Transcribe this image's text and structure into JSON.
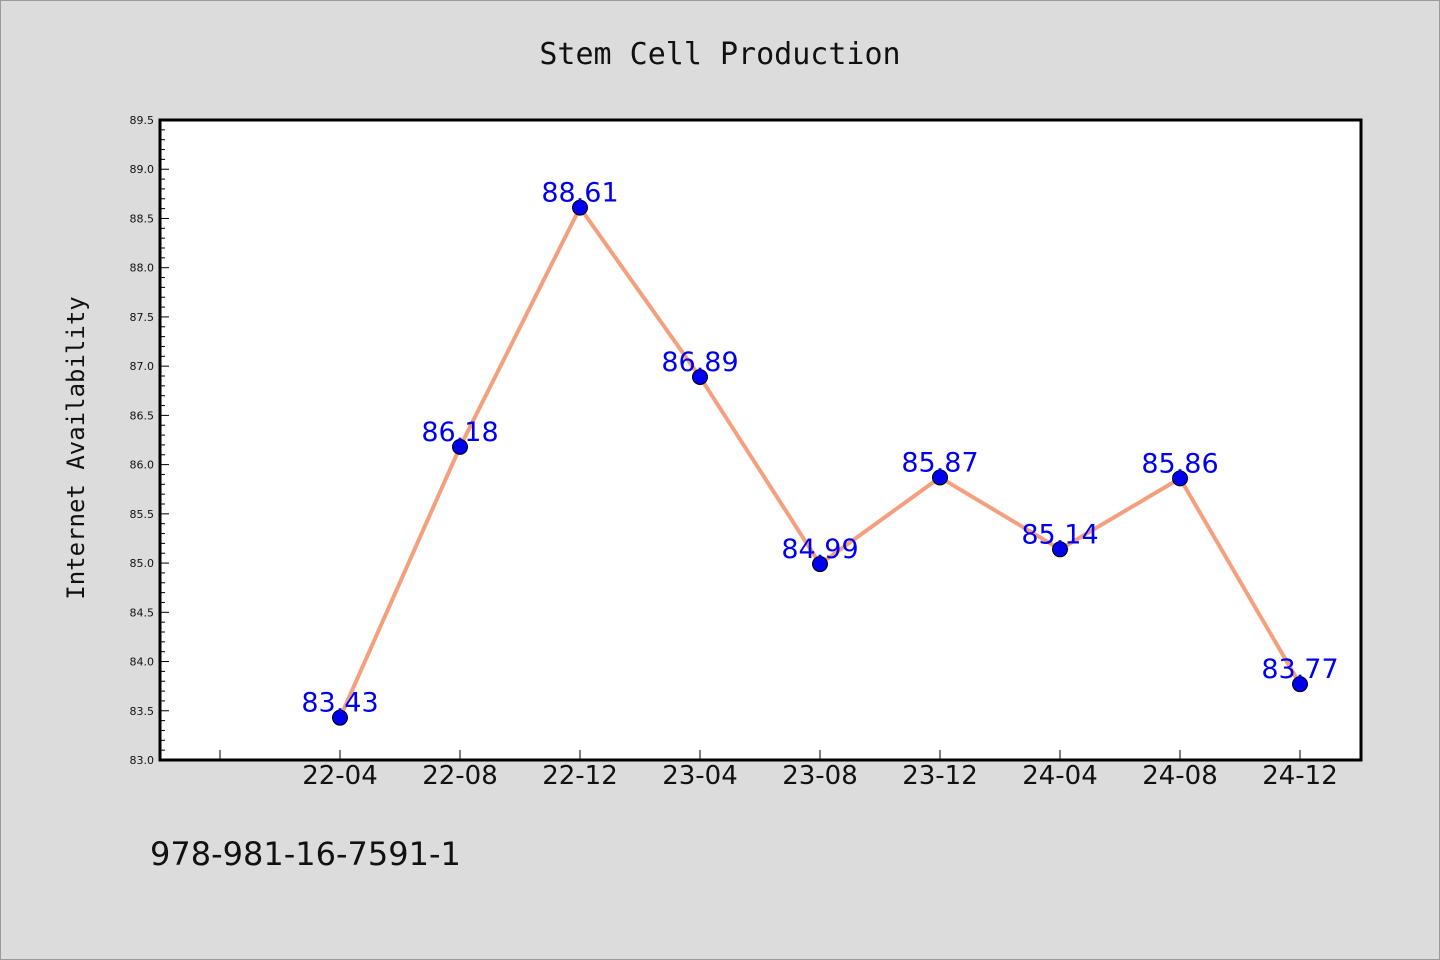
{
  "chart_data": {
    "type": "line",
    "title": "Stem Cell Production",
    "xlabel": "",
    "ylabel": "Internet Availability",
    "categories": [
      "22-04",
      "22-08",
      "22-12",
      "23-04",
      "23-08",
      "23-12",
      "24-04",
      "24-08",
      "24-12"
    ],
    "x": [
      "22-04",
      "22-08",
      "22-12",
      "23-04",
      "23-08",
      "23-12",
      "24-04",
      "24-08",
      "24-12"
    ],
    "series": [
      {
        "values": [
          83.43,
          86.18,
          88.61,
          86.89,
          84.99,
          85.87,
          85.14,
          85.86,
          83.77
        ]
      }
    ],
    "data_labels": [
      "83.43",
      "86.18",
      "88.61",
      "86.89",
      "84.99",
      "85.87",
      "85.14",
      "85.86",
      "83.77"
    ],
    "ylim": [
      83.0,
      89.5
    ],
    "yticks": [
      "83.0",
      "83.5",
      "84.0",
      "84.5",
      "85.0",
      "85.5",
      "86.0",
      "86.5",
      "87.0",
      "87.5",
      "88.0",
      "88.5",
      "89.0",
      "89.5"
    ],
    "grid": false,
    "legend": "none",
    "colors": {
      "line": "#f4a07f",
      "marker": "#0000ee",
      "label": "#0000ee",
      "background": "#dcdcdc",
      "plot_area": "#ffffff"
    }
  },
  "footer_text": "978-981-16-7591-1"
}
